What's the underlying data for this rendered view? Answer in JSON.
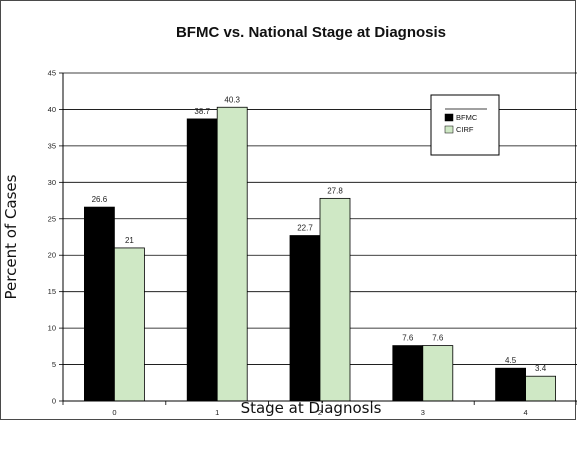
{
  "chart_data": {
    "type": "bar",
    "title": "BFMC vs. National Stage at Diagnosis",
    "xlabel": "Stage at Diagnosis",
    "ylabel": "Percent of Cases",
    "categories": [
      "0",
      "1",
      "2",
      "3",
      "4"
    ],
    "series": [
      {
        "name": "BFMC",
        "values": [
          26.6,
          38.7,
          22.7,
          7.6,
          4.5
        ],
        "labels": [
          "26.6",
          "38.7",
          "22.7",
          "7.6",
          "4.5"
        ],
        "color": "#000000"
      },
      {
        "name": "CIRF",
        "values": [
          21,
          40.3,
          27.8,
          7.6,
          3.4
        ],
        "labels": [
          "21",
          "40.3",
          "27.8",
          "7.6",
          "3.4"
        ],
        "color": "#cfe8c5"
      }
    ],
    "ylim": [
      0,
      45
    ],
    "yticks": [
      0,
      5,
      10,
      15,
      20,
      25,
      30,
      35,
      40,
      45
    ],
    "grid": true,
    "legend": "top-right"
  }
}
